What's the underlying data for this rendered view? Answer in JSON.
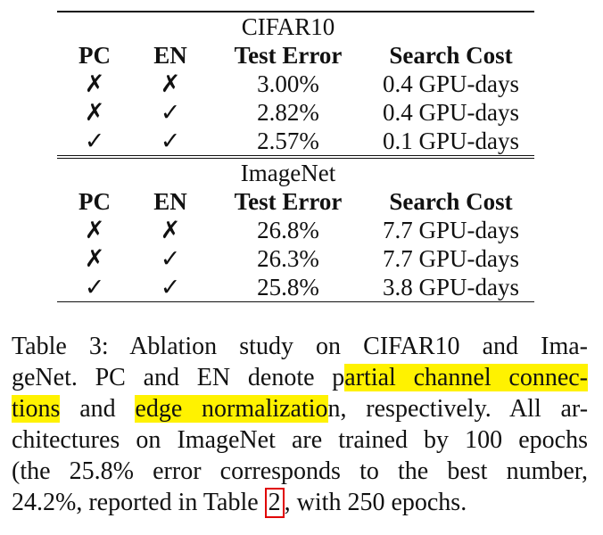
{
  "tables": [
    {
      "dataset": "CIFAR10",
      "headers": [
        "PC",
        "EN",
        "Test Error",
        "Search Cost"
      ],
      "rows": [
        [
          "✗",
          "✗",
          "3.00%",
          "0.4 GPU-days"
        ],
        [
          "✗",
          "✓",
          "2.82%",
          "0.4 GPU-days"
        ],
        [
          "✓",
          "✓",
          "2.57%",
          "0.1 GPU-days"
        ]
      ]
    },
    {
      "dataset": "ImageNet",
      "headers": [
        "PC",
        "EN",
        "Test Error",
        "Search Cost"
      ],
      "rows": [
        [
          "✗",
          "✗",
          "26.8%",
          "7.7 GPU-days"
        ],
        [
          "✗",
          "✓",
          "26.3%",
          "7.7 GPU-days"
        ],
        [
          "✓",
          "✓",
          "25.8%",
          "3.8 GPU-days"
        ]
      ]
    }
  ],
  "caption": {
    "line1": "Table 3: Ablation study on CIFAR10 and Ima-",
    "line2_a": "geNet. PC and EN denote p",
    "line2_hl": "artial channel connec-",
    "line3_hl1": "tions",
    "line3_b": " and ",
    "line3_hl2": "edge normalizatio",
    "line3_c": "n, respectively. All ar-",
    "line4": "chitectures on ImageNet are trained by 100 epochs",
    "line5": "(the 25.8% error corresponds to the best number,",
    "line6_a": "24.2%, reported in Table ",
    "line6_ref": "2",
    "line6_b": ", with 250 epochs."
  },
  "colors": {
    "highlight": "#fff200",
    "reference_box": "#e00000"
  }
}
